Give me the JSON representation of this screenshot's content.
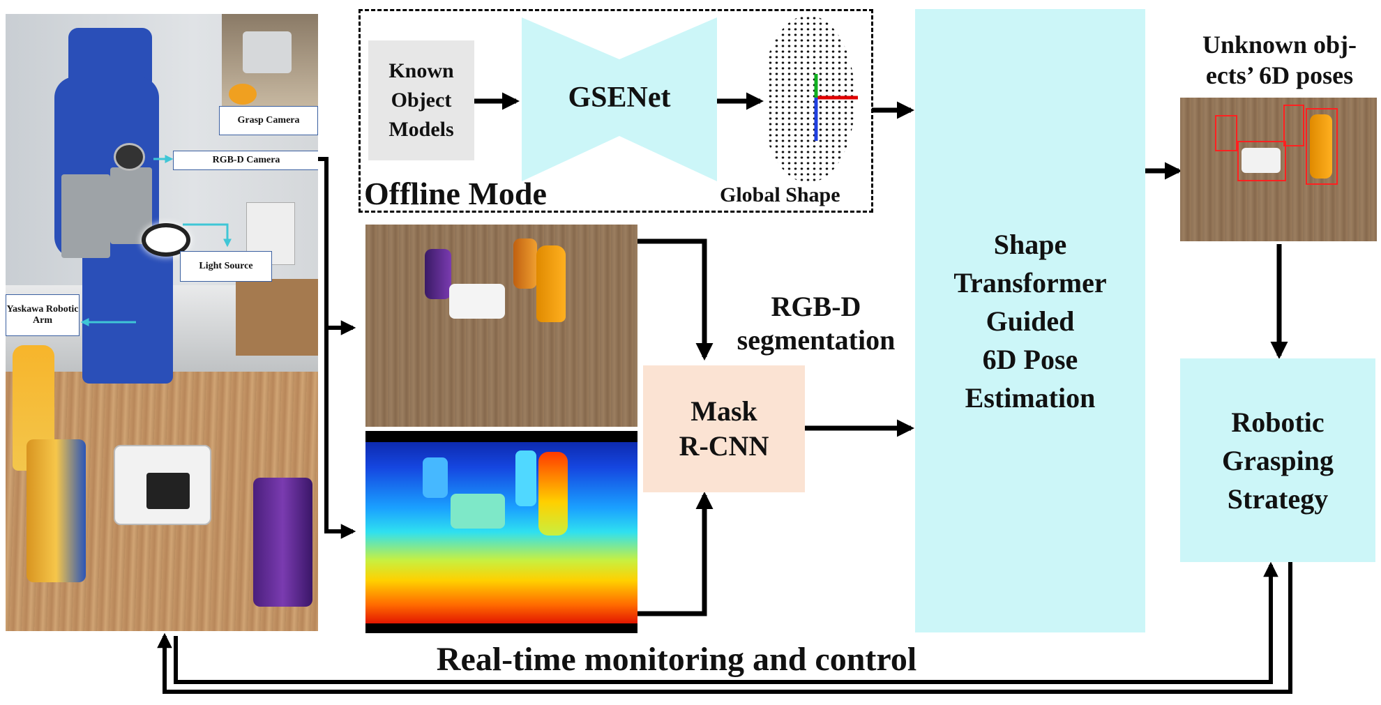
{
  "photo_labels": {
    "grasp_camera": "Grasp Camera",
    "rgbd_camera": "RGB-D Camera",
    "light_source": "Light Source",
    "yaskawa_arm": "Yaskawa Robotic Arm"
  },
  "offline": {
    "title": "Offline Mode",
    "known_models": "Known Object Models",
    "gsenet": "GSENet",
    "global_shape": "Global Shape"
  },
  "segmentation": {
    "label_line1": "RGB-D",
    "label_line2": "segmentation",
    "mask_rcnn_line1": "Mask",
    "mask_rcnn_line2": "R-CNN"
  },
  "transformer": {
    "lines": [
      "Shape",
      "Transformer",
      "Guided",
      "6D Pose",
      "Estimation"
    ]
  },
  "output": {
    "title_line1": "Unknown obj-",
    "title_line2": "ects’ 6D poses",
    "grasp_lines": [
      "Robotic",
      "Grasping",
      "Strategy"
    ]
  },
  "footer": {
    "caption": "Real-time monitoring and control"
  },
  "colors": {
    "cyan_box": "#ccf6f8",
    "peach_box": "#fbe3d3",
    "gray_box": "#e7e7e7",
    "robot_blue": "#2a4fb8"
  }
}
